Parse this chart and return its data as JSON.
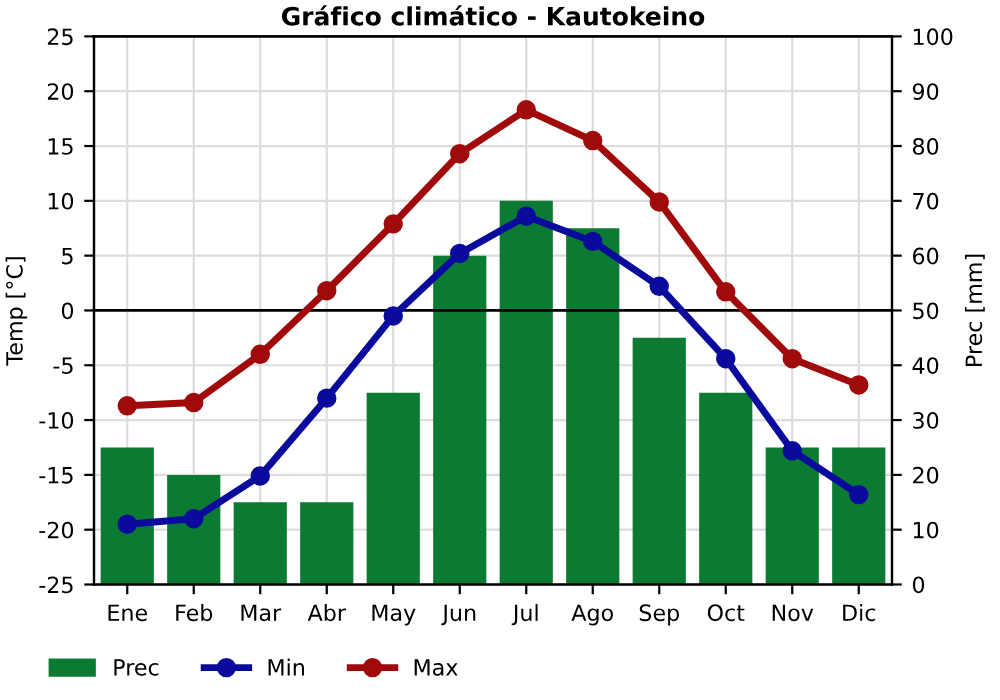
{
  "chart_data": {
    "type": "bar",
    "title": "Gráfico climático - Kautokeino",
    "ylabel": "Temp [°C]",
    "y2label": "Prec [mm]",
    "categories": [
      "Ene",
      "Feb",
      "Mar",
      "Abr",
      "May",
      "Jun",
      "Jul",
      "Ago",
      "Sep",
      "Oct",
      "Nov",
      "Dic"
    ],
    "series": [
      {
        "name": "Prec",
        "axis": "y2",
        "color": "#0b7a32",
        "values": [
          25,
          20,
          15,
          15,
          35,
          60,
          70,
          65,
          45,
          35,
          25,
          25
        ]
      },
      {
        "name": "Min",
        "type": "line",
        "color": "#0a0a9c",
        "values": [
          -19.5,
          -19,
          -15.1,
          -8,
          -0.5,
          5.2,
          8.6,
          6.3,
          2.2,
          -4.4,
          -12.8,
          -16.8
        ]
      },
      {
        "name": "Max",
        "type": "line",
        "color": "#a00a0a",
        "values": [
          -8.7,
          -8.4,
          -4,
          1.8,
          7.9,
          14.3,
          18.3,
          15.5,
          9.9,
          1.7,
          -4.4,
          -6.8
        ]
      }
    ],
    "ylim": [
      -25,
      25
    ],
    "yticks": [
      -25,
      -20,
      -15,
      -10,
      -5,
      0,
      5,
      10,
      15,
      20,
      25
    ],
    "y2lim": [
      0,
      100
    ],
    "y2ticks": [
      0,
      10,
      20,
      30,
      40,
      50,
      60,
      70,
      80,
      90,
      100
    ],
    "ref_lines": [
      {
        "axis": "y",
        "value": 0,
        "label": null,
        "color": "#000000"
      }
    ],
    "grid": true,
    "legend": "bottom",
    "marker": "circle",
    "line_style": "solid"
  }
}
